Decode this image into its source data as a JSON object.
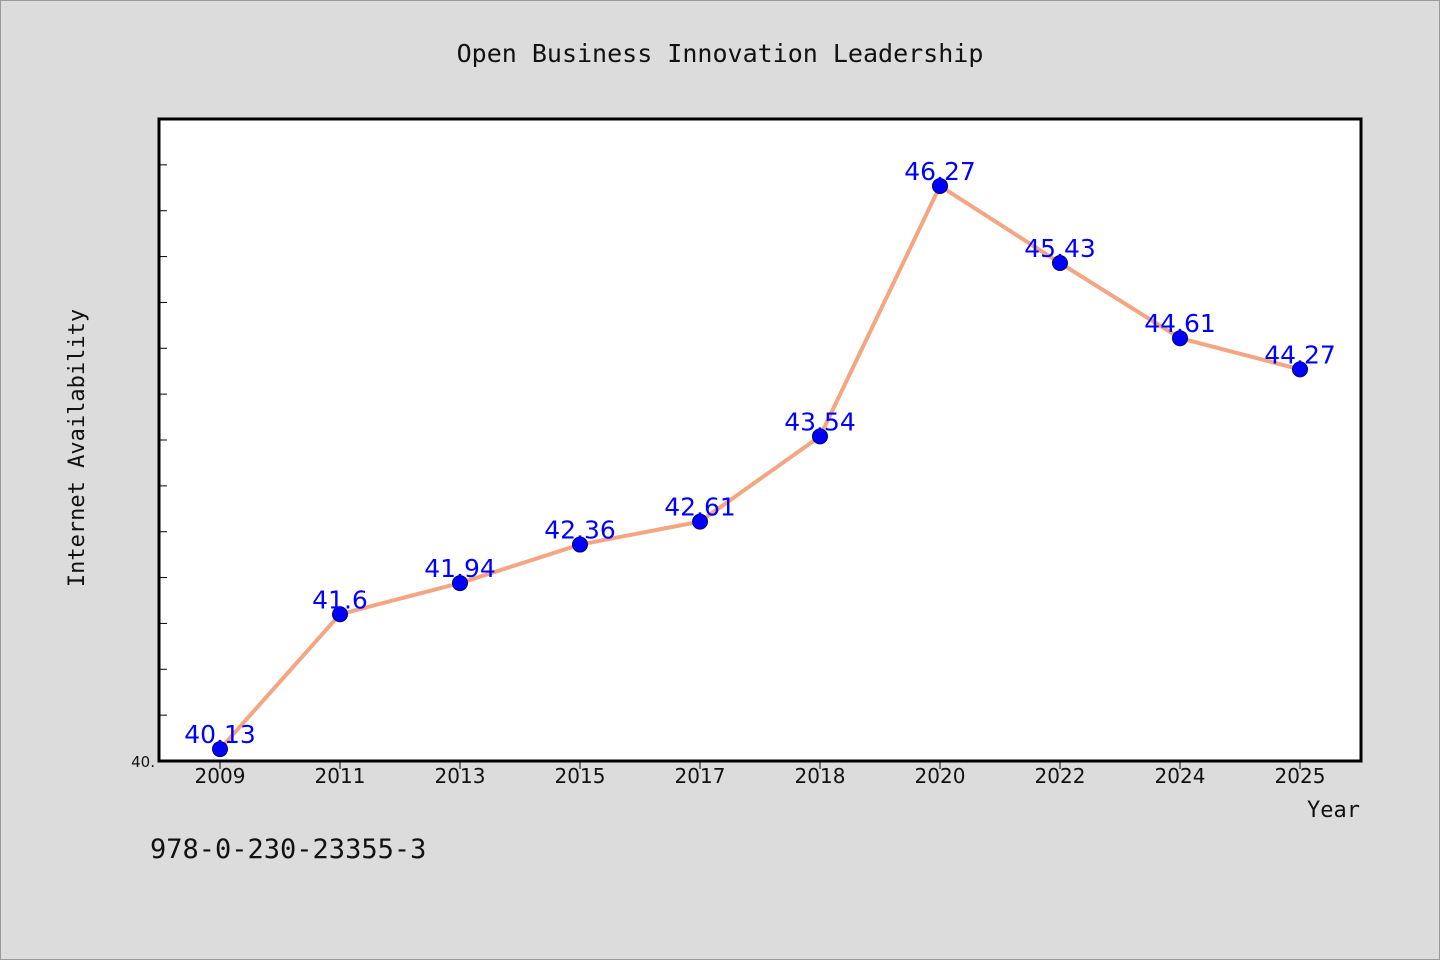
{
  "chart_data": {
    "type": "line",
    "title": "Open Business Innovation Leadership",
    "xlabel": "Year",
    "ylabel": "Internet Availability",
    "categories": [
      "2009",
      "2011",
      "2013",
      "2015",
      "2017",
      "2018",
      "2020",
      "2022",
      "2024",
      "2025"
    ],
    "series": [
      {
        "values": [
          40.13,
          41.6,
          41.94,
          42.36,
          42.61,
          43.54,
          46.27,
          45.43,
          44.61,
          44.27
        ]
      }
    ],
    "data_labels": [
      "40.13",
      "41.6",
      "41.94",
      "42.36",
      "42.61",
      "43.54",
      "46.27",
      "45.43",
      "44.61",
      "44.27"
    ],
    "ylim": [
      40.0,
      47.0
    ],
    "y_tick_label": "40.",
    "grid": false,
    "legend": "none",
    "colors": {
      "line": "#f4a582",
      "marker": "#0000ff",
      "label": "#0000ff",
      "background": "#dcdcdc",
      "plot_background": "#ffffff"
    }
  },
  "footer": {
    "isbn": "978-0-230-23355-3"
  }
}
